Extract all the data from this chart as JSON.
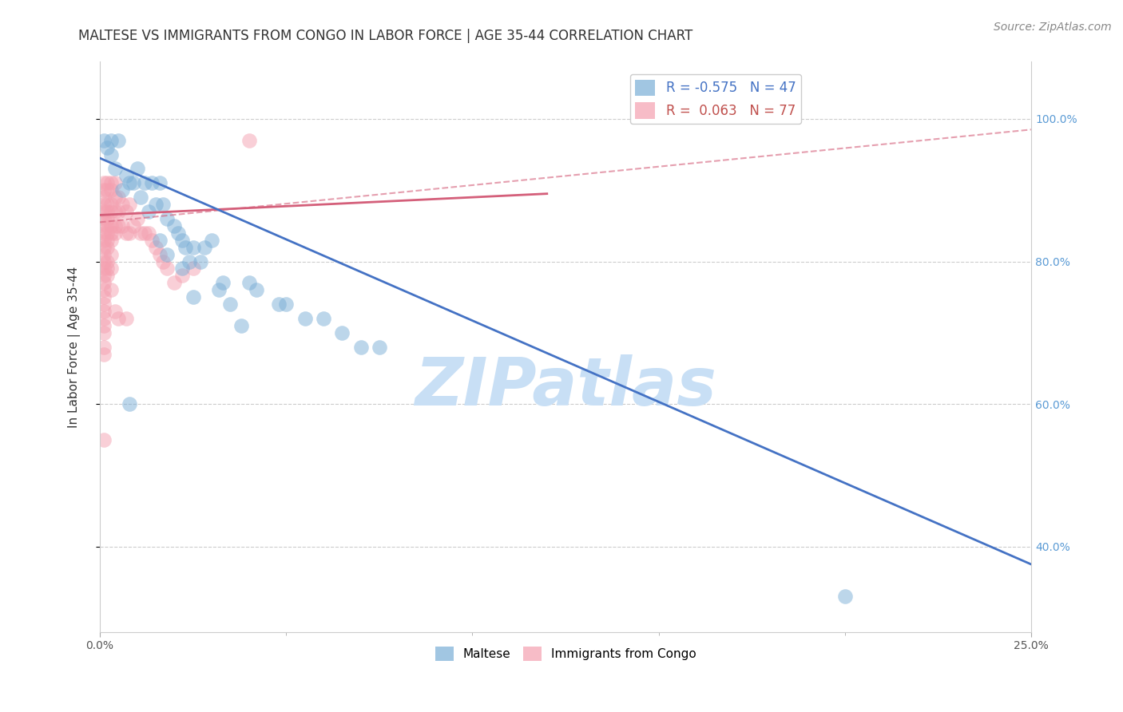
{
  "title": "MALTESE VS IMMIGRANTS FROM CONGO IN LABOR FORCE | AGE 35-44 CORRELATION CHART",
  "source": "Source: ZipAtlas.com",
  "ylabel_label": "In Labor Force | Age 35-44",
  "xlim": [
    0.0,
    0.25
  ],
  "ylim": [
    0.28,
    1.08
  ],
  "blue_r": -0.575,
  "blue_n": 47,
  "pink_r": 0.063,
  "pink_n": 77,
  "legend_blue_label": "Maltese",
  "legend_pink_label": "Immigrants from Congo",
  "watermark": "ZIPatlas",
  "blue_scatter": [
    [
      0.001,
      0.97
    ],
    [
      0.002,
      0.96
    ],
    [
      0.003,
      0.97
    ],
    [
      0.003,
      0.95
    ],
    [
      0.004,
      0.93
    ],
    [
      0.005,
      0.97
    ],
    [
      0.006,
      0.9
    ],
    [
      0.007,
      0.92
    ],
    [
      0.008,
      0.91
    ],
    [
      0.009,
      0.91
    ],
    [
      0.01,
      0.93
    ],
    [
      0.011,
      0.89
    ],
    [
      0.012,
      0.91
    ],
    [
      0.013,
      0.87
    ],
    [
      0.014,
      0.91
    ],
    [
      0.015,
      0.88
    ],
    [
      0.016,
      0.91
    ],
    [
      0.017,
      0.88
    ],
    [
      0.018,
      0.86
    ],
    [
      0.02,
      0.85
    ],
    [
      0.021,
      0.84
    ],
    [
      0.022,
      0.83
    ],
    [
      0.023,
      0.82
    ],
    [
      0.024,
      0.8
    ],
    [
      0.025,
      0.82
    ],
    [
      0.027,
      0.8
    ],
    [
      0.028,
      0.82
    ],
    [
      0.03,
      0.83
    ],
    [
      0.032,
      0.76
    ],
    [
      0.033,
      0.77
    ],
    [
      0.04,
      0.77
    ],
    [
      0.042,
      0.76
    ],
    [
      0.048,
      0.74
    ],
    [
      0.05,
      0.74
    ],
    [
      0.055,
      0.72
    ],
    [
      0.06,
      0.72
    ],
    [
      0.065,
      0.7
    ],
    [
      0.07,
      0.68
    ],
    [
      0.075,
      0.68
    ],
    [
      0.016,
      0.83
    ],
    [
      0.018,
      0.81
    ],
    [
      0.022,
      0.79
    ],
    [
      0.025,
      0.75
    ],
    [
      0.035,
      0.74
    ],
    [
      0.038,
      0.71
    ],
    [
      0.008,
      0.6
    ],
    [
      0.2,
      0.33
    ]
  ],
  "pink_scatter": [
    [
      0.001,
      0.91
    ],
    [
      0.001,
      0.9
    ],
    [
      0.001,
      0.89
    ],
    [
      0.001,
      0.88
    ],
    [
      0.001,
      0.87
    ],
    [
      0.001,
      0.86
    ],
    [
      0.001,
      0.85
    ],
    [
      0.001,
      0.84
    ],
    [
      0.001,
      0.83
    ],
    [
      0.001,
      0.82
    ],
    [
      0.001,
      0.81
    ],
    [
      0.001,
      0.8
    ],
    [
      0.001,
      0.79
    ],
    [
      0.001,
      0.78
    ],
    [
      0.001,
      0.77
    ],
    [
      0.001,
      0.76
    ],
    [
      0.001,
      0.75
    ],
    [
      0.001,
      0.74
    ],
    [
      0.001,
      0.73
    ],
    [
      0.001,
      0.72
    ],
    [
      0.001,
      0.71
    ],
    [
      0.001,
      0.7
    ],
    [
      0.001,
      0.68
    ],
    [
      0.001,
      0.67
    ],
    [
      0.002,
      0.91
    ],
    [
      0.002,
      0.9
    ],
    [
      0.002,
      0.88
    ],
    [
      0.002,
      0.87
    ],
    [
      0.002,
      0.86
    ],
    [
      0.002,
      0.85
    ],
    [
      0.002,
      0.84
    ],
    [
      0.002,
      0.83
    ],
    [
      0.002,
      0.82
    ],
    [
      0.002,
      0.8
    ],
    [
      0.002,
      0.79
    ],
    [
      0.002,
      0.78
    ],
    [
      0.003,
      0.91
    ],
    [
      0.003,
      0.9
    ],
    [
      0.003,
      0.88
    ],
    [
      0.003,
      0.87
    ],
    [
      0.003,
      0.85
    ],
    [
      0.003,
      0.84
    ],
    [
      0.003,
      0.83
    ],
    [
      0.003,
      0.81
    ],
    [
      0.004,
      0.91
    ],
    [
      0.004,
      0.89
    ],
    [
      0.004,
      0.87
    ],
    [
      0.004,
      0.85
    ],
    [
      0.004,
      0.84
    ],
    [
      0.005,
      0.89
    ],
    [
      0.005,
      0.87
    ],
    [
      0.005,
      0.85
    ],
    [
      0.006,
      0.88
    ],
    [
      0.006,
      0.85
    ],
    [
      0.007,
      0.87
    ],
    [
      0.007,
      0.84
    ],
    [
      0.008,
      0.88
    ],
    [
      0.008,
      0.84
    ],
    [
      0.009,
      0.85
    ],
    [
      0.01,
      0.86
    ],
    [
      0.011,
      0.84
    ],
    [
      0.012,
      0.84
    ],
    [
      0.013,
      0.84
    ],
    [
      0.014,
      0.83
    ],
    [
      0.015,
      0.82
    ],
    [
      0.016,
      0.81
    ],
    [
      0.017,
      0.8
    ],
    [
      0.018,
      0.79
    ],
    [
      0.02,
      0.77
    ],
    [
      0.022,
      0.78
    ],
    [
      0.025,
      0.79
    ],
    [
      0.04,
      0.97
    ],
    [
      0.001,
      0.55
    ],
    [
      0.005,
      0.72
    ],
    [
      0.004,
      0.73
    ],
    [
      0.007,
      0.72
    ],
    [
      0.003,
      0.79
    ],
    [
      0.003,
      0.76
    ]
  ],
  "blue_line_x": [
    0.0,
    0.25
  ],
  "blue_line_y": [
    0.945,
    0.375
  ],
  "pink_solid_line_x": [
    0.0,
    0.12
  ],
  "pink_solid_line_y": [
    0.865,
    0.895
  ],
  "pink_dashed_line_x": [
    0.0,
    0.25
  ],
  "pink_dashed_line_y": [
    0.855,
    0.985
  ],
  "grid_color": "#cccccc",
  "blue_color": "#7aaed6",
  "pink_color": "#f4a0b0",
  "blue_line_color": "#4472c4",
  "pink_line_color": "#d45f7a",
  "title_fontsize": 12,
  "axis_label_fontsize": 11,
  "tick_fontsize": 10,
  "source_fontsize": 10,
  "watermark_fontsize": 60,
  "watermark_color": "#c8dff5",
  "right_tick_color": "#5b9bd5",
  "legend_r_color": "#4472c4",
  "legend_r2_color": "#c0504d"
}
